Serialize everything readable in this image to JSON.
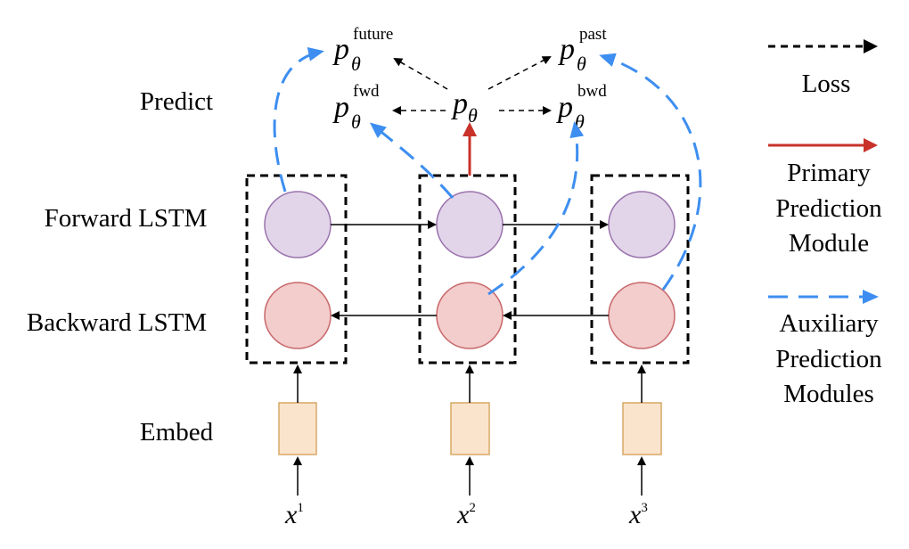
{
  "row_labels": {
    "predict": "Predict",
    "forward": "Forward LSTM",
    "backward": "Backward LSTM",
    "embed": "Embed"
  },
  "heads": {
    "base": "p",
    "sub": "θ",
    "future": "future",
    "past": "past",
    "fwd": "fwd",
    "bwd": "bwd"
  },
  "inputs": {
    "var": "x",
    "idx1": "1",
    "idx2": "2",
    "idx3": "3"
  },
  "legend": {
    "loss": "Loss",
    "primary_1": "Primary",
    "primary_2": "Prediction",
    "primary_3": "Module",
    "aux_1": "Auxiliary",
    "aux_2": "Prediction",
    "aux_3": "Modules"
  },
  "colors": {
    "lstm_forward": "#e2d5ea",
    "lstm_forward_stroke": "#9a73ad",
    "lstm_backward": "#f3cccc",
    "lstm_backward_stroke": "#c8686a",
    "embed_fill": "#fbe4cc",
    "embed_stroke": "#d8a866",
    "primary_arrow": "#c8322a",
    "aux_arrow": "#3d8ef0",
    "loss_arrow": "#000000"
  }
}
